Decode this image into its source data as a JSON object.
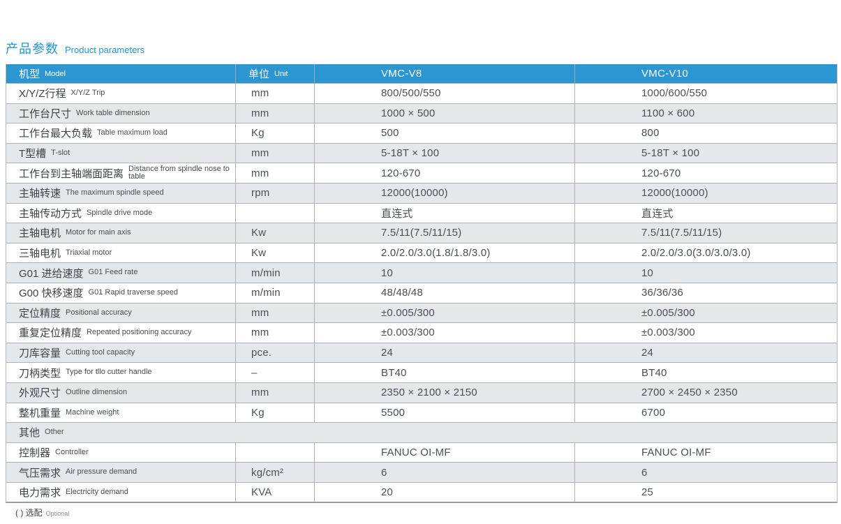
{
  "page": {
    "title_zh": "产品参数",
    "title_en": "Product parameters",
    "footnote_zh": "( ) 选配",
    "footnote_en": "Optional",
    "accent_color": "#2c96d2",
    "zebra_color": "#e5e8ea"
  },
  "table": {
    "header": {
      "model_zh": "机型",
      "model_en": "Model",
      "unit_zh": "单位",
      "unit_en": "Unit",
      "col_v8": "VMC-V8",
      "col_v10": "VMC-V10"
    },
    "rows": [
      {
        "zh": "X/Y/Z行程",
        "en": "X/Y/Z Trip",
        "unit": "mm",
        "v8": "800/500/550",
        "v10": "1000/600/550"
      },
      {
        "zh": "工作台尺寸",
        "en": "Work table dimension",
        "unit": "mm",
        "v8": "1000 × 500",
        "v10": "1100 × 600"
      },
      {
        "zh": "工作台最大负载",
        "en": "Table maximum load",
        "unit": "Kg",
        "v8": "500",
        "v10": "800"
      },
      {
        "zh": "T型槽",
        "en": "T-slot",
        "unit": "mm",
        "v8": "5-18T × 100",
        "v10": "5-18T × 100"
      },
      {
        "zh": "工作台到主轴端面距离",
        "en": "Distance from spindle nose to table",
        "unit": "mm",
        "v8": "120-670",
        "v10": "120-670"
      },
      {
        "zh": "主轴转速",
        "en": "The maximum spindle speed",
        "unit": "rpm",
        "v8": "12000(10000)",
        "v10": "12000(10000)"
      },
      {
        "zh": "主轴传动方式",
        "en": "Spindle drive mode",
        "unit": "",
        "v8": "直连式",
        "v10": "直连式"
      },
      {
        "zh": "主轴电机",
        "en": "Motor for main axis",
        "unit": "Kw",
        "v8": "7.5/11(7.5/11/15)",
        "v10": "7.5/11(7.5/11/15)"
      },
      {
        "zh": "三轴电机",
        "en": "Triaxial motor",
        "unit": "Kw",
        "v8": "2.0/2.0/3.0(1.8/1.8/3.0)",
        "v10": "2.0/2.0/3.0(3.0/3.0/3.0)"
      },
      {
        "zh": "G01 进给速度",
        "en": "G01 Feed rate",
        "unit": "m/min",
        "v8": "10",
        "v10": "10"
      },
      {
        "zh": "G00 快移速度",
        "en": "G01 Rapid traverse speed",
        "unit": "m/min",
        "v8": "48/48/48",
        "v10": "36/36/36"
      },
      {
        "zh": "定位精度",
        "en": "Positional accuracy",
        "unit": "mm",
        "v8": "±0.005/300",
        "v10": "±0.005/300"
      },
      {
        "zh": "重复定位精度",
        "en": "Repeated positioning accuracy",
        "unit": "mm",
        "v8": "±0.003/300",
        "v10": "±0.003/300"
      },
      {
        "zh": "刀库容量",
        "en": "Cutting tool capacity",
        "unit": "pce.",
        "v8": "24",
        "v10": "24"
      },
      {
        "zh": "刀柄类型",
        "en": "Type for tllo cutter handle",
        "unit": "–",
        "v8": "BT40",
        "v10": "BT40"
      },
      {
        "zh": "外观尺寸",
        "en": "Outline dimension",
        "unit": "mm",
        "v8": "2350 × 2100 × 2150",
        "v10": "2700 × 2450 × 2350"
      },
      {
        "zh": "整机重量",
        "en": "Machine weight",
        "unit": "Kg",
        "v8": "5500",
        "v10": "6700"
      },
      {
        "zh": "其他",
        "en": "Other",
        "section": true
      },
      {
        "zh": "控制器",
        "en": "Controller",
        "unit": "",
        "v8": "FANUC OI-MF",
        "v10": "FANUC OI-MF"
      },
      {
        "zh": "气压需求",
        "en": "Air pressure demand",
        "unit": "kg/cm²",
        "v8": "6",
        "v10": "6"
      },
      {
        "zh": "电力需求",
        "en": "Electricity demand",
        "unit": "KVA",
        "v8": "20",
        "v10": "25"
      }
    ]
  }
}
